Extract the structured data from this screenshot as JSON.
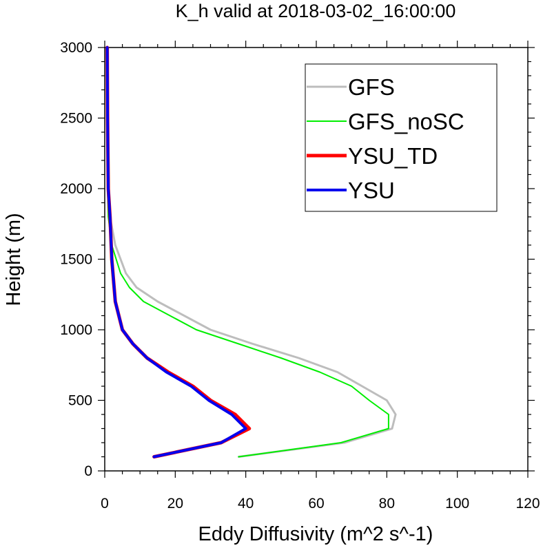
{
  "chart_data": {
    "type": "line",
    "title": "K_h valid at 2018-03-02_16:00:00",
    "xlabel": "Eddy Diffusivity (m^2 s^-1)",
    "ylabel": "Height (m)",
    "xlim": [
      0,
      120
    ],
    "ylim": [
      0,
      3000
    ],
    "xticks": [
      0,
      20,
      40,
      60,
      80,
      100,
      120
    ],
    "yticks": [
      0,
      500,
      1000,
      1500,
      2000,
      2500,
      3000
    ],
    "legend_position": "top-right",
    "series": [
      {
        "name": "GFS",
        "color": "#bdbdbd",
        "line_width": 3,
        "points": [
          [
            38,
            100
          ],
          [
            68,
            200
          ],
          [
            81.5,
            300
          ],
          [
            82.5,
            400
          ],
          [
            80,
            500
          ],
          [
            73,
            600
          ],
          [
            66,
            700
          ],
          [
            55,
            800
          ],
          [
            42,
            900
          ],
          [
            30,
            1000
          ],
          [
            15,
            1200
          ],
          [
            9,
            1300
          ],
          [
            6,
            1400
          ],
          [
            3,
            1600
          ],
          [
            1.5,
            1800
          ],
          [
            1,
            2000
          ],
          [
            0.8,
            2500
          ],
          [
            0.7,
            3000
          ]
        ]
      },
      {
        "name": "GFS_noSC",
        "color": "#00ee00",
        "line_width": 2,
        "points": [
          [
            38,
            100
          ],
          [
            67,
            200
          ],
          [
            80.5,
            300
          ],
          [
            80.5,
            400
          ],
          [
            75,
            500
          ],
          [
            70,
            600
          ],
          [
            61,
            700
          ],
          [
            50,
            800
          ],
          [
            38,
            900
          ],
          [
            26,
            1000
          ],
          [
            11,
            1200
          ],
          [
            7,
            1300
          ],
          [
            4.5,
            1400
          ],
          [
            2,
            1600
          ],
          [
            1,
            1800
          ],
          [
            0.8,
            2000
          ],
          [
            0.6,
            2500
          ],
          [
            0.6,
            3000
          ]
        ]
      },
      {
        "name": "YSU_TD",
        "color": "#ff0000",
        "line_width": 5,
        "points": [
          [
            14,
            100
          ],
          [
            33,
            200
          ],
          [
            41,
            300
          ],
          [
            37,
            400
          ],
          [
            30,
            500
          ],
          [
            25,
            600
          ],
          [
            18,
            700
          ],
          [
            12,
            800
          ],
          [
            8,
            900
          ],
          [
            5,
            1000
          ],
          [
            3,
            1200
          ],
          [
            2,
            1500
          ],
          [
            1.5,
            1800
          ],
          [
            1,
            2000
          ],
          [
            0.8,
            2500
          ],
          [
            0.7,
            3000
          ]
        ]
      },
      {
        "name": "YSU",
        "color": "#0000ee",
        "line_width": 4,
        "points": [
          [
            14,
            100
          ],
          [
            33,
            200
          ],
          [
            40,
            300
          ],
          [
            36,
            400
          ],
          [
            29.5,
            500
          ],
          [
            24.5,
            600
          ],
          [
            17.5,
            700
          ],
          [
            12,
            800
          ],
          [
            8,
            900
          ],
          [
            5,
            1000
          ],
          [
            3,
            1200
          ],
          [
            2,
            1500
          ],
          [
            1.5,
            1800
          ],
          [
            1,
            2000
          ],
          [
            0.8,
            2500
          ],
          [
            0.7,
            3000
          ]
        ]
      }
    ]
  }
}
